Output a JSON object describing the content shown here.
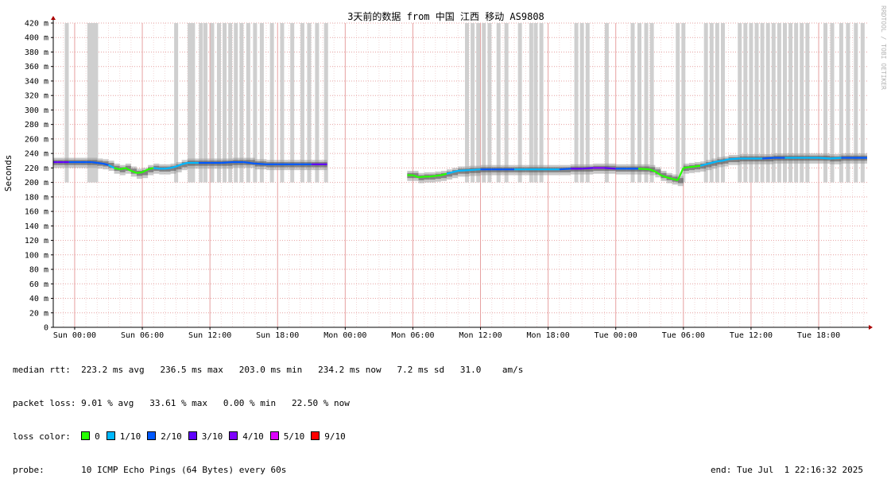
{
  "chart_data": {
    "type": "line",
    "title": "3天前的数据 from 中国 江西 移动 AS9808",
    "ylabel": "Seconds",
    "watermark": "RRDTOOL / TOBI OETIKER",
    "ylim": [
      0,
      420
    ],
    "y_unit": "ms",
    "y_ticks": [
      {
        "v": 0,
        "label": "0"
      },
      {
        "v": 20,
        "label": "20 m"
      },
      {
        "v": 40,
        "label": "40 m"
      },
      {
        "v": 60,
        "label": "60 m"
      },
      {
        "v": 80,
        "label": "80 m"
      },
      {
        "v": 100,
        "label": "100 m"
      },
      {
        "v": 120,
        "label": "120 m"
      },
      {
        "v": 140,
        "label": "140 m"
      },
      {
        "v": 160,
        "label": "160 m"
      },
      {
        "v": 180,
        "label": "180 m"
      },
      {
        "v": 200,
        "label": "200 m"
      },
      {
        "v": 220,
        "label": "220 m"
      },
      {
        "v": 240,
        "label": "240 m"
      },
      {
        "v": 260,
        "label": "260 m"
      },
      {
        "v": 280,
        "label": "280 m"
      },
      {
        "v": 300,
        "label": "300 m"
      },
      {
        "v": 320,
        "label": "320 m"
      },
      {
        "v": 340,
        "label": "340 m"
      },
      {
        "v": 360,
        "label": "360 m"
      },
      {
        "v": 380,
        "label": "380 m"
      },
      {
        "v": 400,
        "label": "400 m"
      },
      {
        "v": 420,
        "label": "420 m"
      }
    ],
    "xlim_hours": [
      -1.9,
      70.3
    ],
    "x_ticks": [
      {
        "h": 0,
        "label": "Sun 00:00"
      },
      {
        "h": 6,
        "label": "Sun 06:00"
      },
      {
        "h": 12,
        "label": "Sun 12:00"
      },
      {
        "h": 18,
        "label": "Sun 18:00"
      },
      {
        "h": 24,
        "label": "Mon 00:00"
      },
      {
        "h": 30,
        "label": "Mon 06:00"
      },
      {
        "h": 36,
        "label": "Mon 12:00"
      },
      {
        "h": 42,
        "label": "Mon 18:00"
      },
      {
        "h": 48,
        "label": "Tue 00:00"
      },
      {
        "h": 54,
        "label": "Tue 06:00"
      },
      {
        "h": 60,
        "label": "Tue 12:00"
      },
      {
        "h": 66,
        "label": "Tue 18:00"
      }
    ],
    "grid": true,
    "median_rtt_series": [
      {
        "x": -1.9,
        "y": 228,
        "loss": 3
      },
      {
        "x": -1.5,
        "y": 228,
        "loss": 3
      },
      {
        "x": -1.0,
        "y": 228,
        "loss": 3
      },
      {
        "x": -0.5,
        "y": 228,
        "loss": 3
      },
      {
        "x": 0,
        "y": 228,
        "loss": 2
      },
      {
        "x": 0.5,
        "y": 228,
        "loss": 2
      },
      {
        "x": 1.0,
        "y": 228,
        "loss": 2
      },
      {
        "x": 1.5,
        "y": 228,
        "loss": 2
      },
      {
        "x": 2.0,
        "y": 227,
        "loss": 2
      },
      {
        "x": 2.5,
        "y": 226,
        "loss": 2
      },
      {
        "x": 3.0,
        "y": 224,
        "loss": 2
      },
      {
        "x": 3.5,
        "y": 220,
        "loss": 1
      },
      {
        "x": 4.0,
        "y": 218,
        "loss": 0
      },
      {
        "x": 4.5,
        "y": 220,
        "loss": 0
      },
      {
        "x": 5.0,
        "y": 216,
        "loss": 0
      },
      {
        "x": 5.5,
        "y": 213,
        "loss": 0
      },
      {
        "x": 6.0,
        "y": 214,
        "loss": 0
      },
      {
        "x": 6.5,
        "y": 218,
        "loss": 0
      },
      {
        "x": 7.0,
        "y": 220,
        "loss": 0
      },
      {
        "x": 7.5,
        "y": 219,
        "loss": 1
      },
      {
        "x": 8.0,
        "y": 219,
        "loss": 1
      },
      {
        "x": 8.5,
        "y": 220,
        "loss": 1
      },
      {
        "x": 9.0,
        "y": 222,
        "loss": 1
      },
      {
        "x": 9.5,
        "y": 225,
        "loss": 1
      },
      {
        "x": 10.0,
        "y": 227,
        "loss": 1
      },
      {
        "x": 11.0,
        "y": 227,
        "loss": 1
      },
      {
        "x": 12.0,
        "y": 227,
        "loss": 2
      },
      {
        "x": 13.0,
        "y": 227,
        "loss": 2
      },
      {
        "x": 14.0,
        "y": 228,
        "loss": 2
      },
      {
        "x": 15.0,
        "y": 228,
        "loss": 2
      },
      {
        "x": 16.0,
        "y": 226,
        "loss": 2
      },
      {
        "x": 17.0,
        "y": 225,
        "loss": 2
      },
      {
        "x": 18.0,
        "y": 225,
        "loss": 2
      },
      {
        "x": 19.0,
        "y": 225,
        "loss": 2
      },
      {
        "x": 20.0,
        "y": 225,
        "loss": 2
      },
      {
        "x": 21.0,
        "y": 225,
        "loss": 2
      },
      {
        "x": 22.0,
        "y": 225,
        "loss": 3
      },
      {
        "x": 22.4,
        "y": 225,
        "loss": 3
      },
      {
        "x": 29.5,
        "y": 210,
        "loss": null
      },
      {
        "x": 30.0,
        "y": 210,
        "loss": 0
      },
      {
        "x": 30.5,
        "y": 207,
        "loss": 0
      },
      {
        "x": 31.0,
        "y": 208,
        "loss": 0
      },
      {
        "x": 31.5,
        "y": 208,
        "loss": 0
      },
      {
        "x": 32.0,
        "y": 209,
        "loss": 0
      },
      {
        "x": 32.5,
        "y": 210,
        "loss": 0
      },
      {
        "x": 33.0,
        "y": 212,
        "loss": 0
      },
      {
        "x": 33.5,
        "y": 214,
        "loss": 1
      },
      {
        "x": 34.0,
        "y": 216,
        "loss": 1
      },
      {
        "x": 35.0,
        "y": 217,
        "loss": 1
      },
      {
        "x": 36.0,
        "y": 218,
        "loss": 1
      },
      {
        "x": 37.0,
        "y": 218,
        "loss": 2
      },
      {
        "x": 38.0,
        "y": 218,
        "loss": 2
      },
      {
        "x": 39.0,
        "y": 218,
        "loss": 2
      },
      {
        "x": 40.0,
        "y": 218,
        "loss": 1
      },
      {
        "x": 41.0,
        "y": 218,
        "loss": 1
      },
      {
        "x": 42.0,
        "y": 218,
        "loss": 1
      },
      {
        "x": 43.0,
        "y": 218,
        "loss": 1
      },
      {
        "x": 44.0,
        "y": 219,
        "loss": 2
      },
      {
        "x": 45.0,
        "y": 219,
        "loss": 3
      },
      {
        "x": 46.0,
        "y": 220,
        "loss": 3
      },
      {
        "x": 47.0,
        "y": 220,
        "loss": 4
      },
      {
        "x": 48.0,
        "y": 219,
        "loss": 3
      },
      {
        "x": 49.0,
        "y": 219,
        "loss": 2
      },
      {
        "x": 50.0,
        "y": 219,
        "loss": 2
      },
      {
        "x": 51.0,
        "y": 218,
        "loss": 0
      },
      {
        "x": 51.5,
        "y": 215,
        "loss": 0
      },
      {
        "x": 52.0,
        "y": 210,
        "loss": 0
      },
      {
        "x": 52.5,
        "y": 207,
        "loss": 0
      },
      {
        "x": 53.0,
        "y": 205,
        "loss": 0
      },
      {
        "x": 53.5,
        "y": 203,
        "loss": 0
      },
      {
        "x": 54.0,
        "y": 220,
        "loss": 0
      },
      {
        "x": 54.5,
        "y": 221,
        "loss": 0
      },
      {
        "x": 55.0,
        "y": 222,
        "loss": 0
      },
      {
        "x": 55.5,
        "y": 223,
        "loss": 0
      },
      {
        "x": 56.0,
        "y": 225,
        "loss": 1
      },
      {
        "x": 56.5,
        "y": 227,
        "loss": 1
      },
      {
        "x": 57.0,
        "y": 229,
        "loss": 1
      },
      {
        "x": 57.5,
        "y": 230,
        "loss": 1
      },
      {
        "x": 58.0,
        "y": 232,
        "loss": 1
      },
      {
        "x": 59.0,
        "y": 233,
        "loss": 1
      },
      {
        "x": 60.0,
        "y": 233,
        "loss": 1
      },
      {
        "x": 61.0,
        "y": 233,
        "loss": 1
      },
      {
        "x": 62.0,
        "y": 234,
        "loss": 2
      },
      {
        "x": 63.0,
        "y": 234,
        "loss": 2
      },
      {
        "x": 64.0,
        "y": 234,
        "loss": 1
      },
      {
        "x": 65.0,
        "y": 234,
        "loss": 1
      },
      {
        "x": 66.0,
        "y": 234,
        "loss": 1
      },
      {
        "x": 67.0,
        "y": 233,
        "loss": 1
      },
      {
        "x": 68.0,
        "y": 234,
        "loss": 1
      },
      {
        "x": 69.0,
        "y": 234,
        "loss": 2
      },
      {
        "x": 70.3,
        "y": 234,
        "loss": 2
      }
    ],
    "loss_spikes_hours": [
      -0.7,
      1.3,
      1.6,
      1.9,
      9.0,
      10.2,
      10.5,
      11.2,
      11.6,
      12.2,
      12.8,
      13.3,
      13.8,
      14.3,
      14.8,
      15.4,
      16.0,
      16.6,
      17.5,
      18.4,
      19.3,
      20.2,
      20.8,
      21.5,
      22.3,
      34.8,
      35.3,
      35.8,
      36.3,
      36.8,
      37.6,
      38.3,
      39.5,
      40.5,
      40.9,
      41.4,
      44.5,
      45.0,
      45.5,
      47.2,
      49.5,
      50.1,
      50.7,
      51.2,
      53.5,
      54.0,
      56.0,
      56.5,
      57.0,
      57.5,
      59.0,
      59.5,
      60.0,
      60.5,
      61.0,
      61.5,
      62.0,
      62.5,
      63.0,
      63.5,
      64.0,
      64.5,
      65.0,
      66.6,
      67.2,
      68.0,
      68.6,
      69.3,
      69.9
    ],
    "loss_colors": [
      {
        "label": "0",
        "color": "#26ff00"
      },
      {
        "label": "1/10",
        "color": "#00b8ff"
      },
      {
        "label": "2/10",
        "color": "#0059ff"
      },
      {
        "label": "3/10",
        "color": "#5e00ff"
      },
      {
        "label": "4/10",
        "color": "#7e00ff"
      },
      {
        "label": "5/10",
        "color": "#dd00ff"
      },
      {
        "label": "9/10",
        "color": "#ff0000"
      }
    ],
    "stats": {
      "median_rtt_label": "median rtt:",
      "median_rtt_values": "223.2 ms avg   236.5 ms max   203.0 ms min   234.2 ms now   7.2 ms sd   31.0    am/s",
      "packet_loss_label": "packet loss:",
      "packet_loss_values": "9.01 % avg   33.61 % max   0.00 % min   22.50 % now",
      "loss_color_label": "loss color:",
      "probe_label": "probe:",
      "probe_value": "10 ICMP Echo Pings (64 Bytes) every 60s",
      "end": "end: Tue Jul  1 22:16:32 2025"
    }
  }
}
